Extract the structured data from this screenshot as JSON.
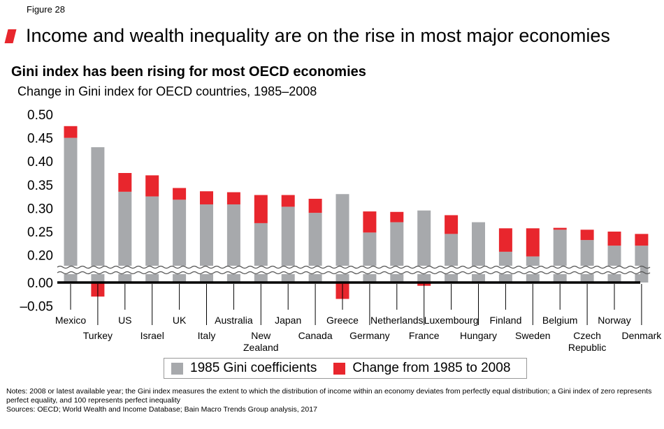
{
  "figure_label": "Figure 28",
  "headline": "Income and wealth inequality are on the rise in most major economies",
  "colors": {
    "accent": "#e8262d",
    "base_bar": "#a7a9ac",
    "axis": "#000000"
  },
  "chart_data": {
    "type": "bar",
    "stacked": true,
    "title": "Gini index has been rising for most OECD economies",
    "subtitle": "Change in Gini index for OECD countries, 1985–2008",
    "xlabel": "",
    "ylabel": "",
    "axis_break": {
      "from": 0.0,
      "to": 0.15
    },
    "ylim": [
      -0.05,
      0.5
    ],
    "yticks": [
      {
        "value": 0.5,
        "label": "0.50"
      },
      {
        "value": 0.45,
        "label": "0.45"
      },
      {
        "value": 0.4,
        "label": "0.40"
      },
      {
        "value": 0.35,
        "label": "0.35"
      },
      {
        "value": 0.3,
        "label": "0.30"
      },
      {
        "value": 0.25,
        "label": "0.25"
      },
      {
        "value": 0.2,
        "label": "0.20"
      },
      {
        "value": 0.0,
        "label": "0.00"
      },
      {
        "value": -0.05,
        "label": "–0.05"
      }
    ],
    "categories": [
      [
        "Mexico"
      ],
      [
        "Turkey"
      ],
      [
        "US"
      ],
      [
        "Israel"
      ],
      [
        "UK"
      ],
      [
        "Italy"
      ],
      [
        "Australia"
      ],
      [
        "New",
        "Zealand"
      ],
      [
        "Japan"
      ],
      [
        "Canada"
      ],
      [
        "Greece"
      ],
      [
        "Germany"
      ],
      [
        "Netherlands"
      ],
      [
        "France"
      ],
      [
        "Luxembourg"
      ],
      [
        "Hungary"
      ],
      [
        "Finland"
      ],
      [
        "Sweden"
      ],
      [
        "Belgium"
      ],
      [
        "Czech",
        "Republic"
      ],
      [
        "Norway"
      ],
      [
        "Denmark"
      ]
    ],
    "series": [
      {
        "name": "1985 Gini coefficients",
        "values": [
          0.45,
          0.43,
          0.335,
          0.325,
          0.318,
          0.308,
          0.308,
          0.268,
          0.303,
          0.29,
          0.33,
          0.248,
          0.27,
          0.295,
          0.245,
          0.27,
          0.207,
          0.197,
          0.254,
          0.232,
          0.22,
          0.22
        ]
      },
      {
        "name": "Change from 1985 to 2008",
        "values": [
          0.025,
          -0.03,
          0.04,
          0.045,
          0.025,
          0.028,
          0.026,
          0.06,
          0.025,
          0.03,
          -0.035,
          0.045,
          0.022,
          -0.007,
          0.04,
          0.0,
          0.05,
          0.06,
          0.004,
          0.022,
          0.03,
          0.025
        ]
      }
    ]
  },
  "legend": {
    "items": [
      {
        "label": "1985 Gini coefficients",
        "color": "#a7a9ac"
      },
      {
        "label": "Change from 1985 to 2008",
        "color": "#e8262d"
      }
    ]
  },
  "notes": {
    "line1": "Notes: 2008 or latest available year; the Gini index measures the extent to which the distribution of income within an economy deviates from perfectly equal distribution; a Gini index of zero represents perfect equality, and 100 represents perfect inequality",
    "line2": "Sources: OECD; World Wealth and Income Database; Bain Macro Trends Group analysis, 2017"
  }
}
